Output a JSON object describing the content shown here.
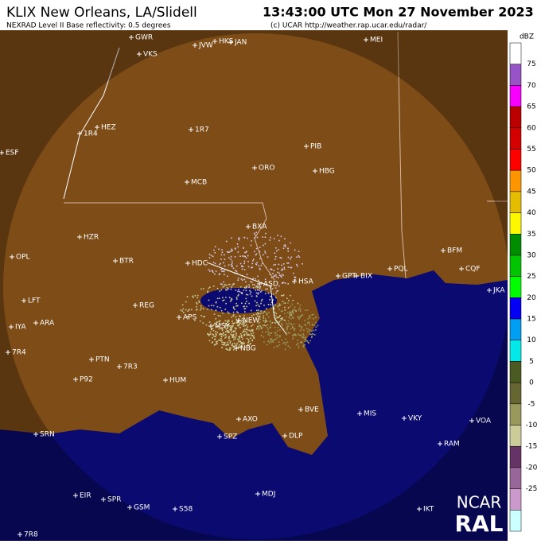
{
  "header": {
    "title": "KLIX New Orleans, LA/Slidell",
    "timestamp": "13:43:00 UTC Mon 27 November 2023",
    "subtitle": "NEXRAD Level II Base reflectivity: 0.5 degrees",
    "credit": "(c) UCAR http://weather.rap.ucar.edu/radar/"
  },
  "stations": [
    "GWR",
    "JVW",
    "HKS",
    "JAN",
    "MEI",
    "VKS",
    "HEZ",
    "1R4",
    "1R7",
    "PIB",
    "ORO",
    "HBG",
    "MCB",
    "ESF",
    "HZR",
    "OPL",
    "BTR",
    "HDC",
    "BXA",
    "LFT",
    "REG",
    "ARA",
    "IYA",
    "APS",
    "MSY",
    "NEW",
    "ASD",
    "HSA",
    "GPT",
    "BIX",
    "PQL",
    "BFM",
    "CQF",
    "JKA",
    "7R4",
    "PTN",
    "7R3",
    "P92",
    "HUM",
    "NBG",
    "MIS",
    "VKY",
    "VOA",
    "BVE",
    "AXO",
    "SPZ",
    "DLP",
    "SRN",
    "RAM",
    "EIR",
    "SPR",
    "GSM",
    "S58",
    "MDJ",
    "IKT",
    "7R8"
  ],
  "colorbar": {
    "unit": "dBZ",
    "ticks": [
      75,
      70,
      65,
      60,
      55,
      50,
      45,
      40,
      35,
      30,
      25,
      20,
      15,
      10,
      5,
      0,
      -5,
      -10,
      -15,
      -20,
      -25
    ],
    "colors": [
      "#ffffff",
      "#9854c6",
      "#f800fd",
      "#bc0000",
      "#d40000",
      "#fd0000",
      "#fd9500",
      "#e5bc00",
      "#fdf802",
      "#008e00",
      "#01c501",
      "#02fd02",
      "#0300f4",
      "#019ff4",
      "#04e9e7",
      "#4a5a20",
      "#666633",
      "#99995d",
      "#cccc99",
      "#663366",
      "#996699",
      "#cc99cc",
      "#ccffff"
    ]
  },
  "logo": {
    "line1": "NCAR",
    "line2": "RAL"
  }
}
